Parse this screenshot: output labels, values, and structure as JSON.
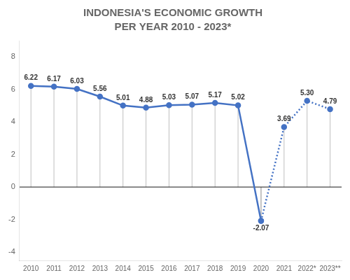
{
  "chart_data": {
    "type": "line",
    "title": "INDONESIA'S ECONOMIC GROWTH",
    "subtitle": "PER YEAR 2010 - 2023*",
    "categories": [
      "2010",
      "2011",
      "2012",
      "2013",
      "2014",
      "2015",
      "2016",
      "2017",
      "2018",
      "2019",
      "2020",
      "2021",
      "2022*",
      "2023**"
    ],
    "color": "#4472c4",
    "series": [
      {
        "line_style": "solid",
        "values": [
          6.22,
          6.17,
          6.03,
          5.56,
          5.01,
          4.88,
          5.03,
          5.07,
          5.17,
          5.02,
          -2.07,
          null,
          null,
          null
        ],
        "value_labels": [
          "6.22",
          "6.17",
          "6.03",
          "5.56",
          "5.01",
          "4.88",
          "5.03",
          "5.07",
          "5.17",
          "5.02",
          "-2.07",
          null,
          null,
          null
        ]
      },
      {
        "line_style": "dotted",
        "values": [
          null,
          null,
          null,
          null,
          null,
          null,
          null,
          null,
          null,
          null,
          -2.07,
          3.69,
          5.3,
          4.79
        ],
        "value_labels": [
          null,
          null,
          null,
          null,
          null,
          null,
          null,
          null,
          null,
          null,
          null,
          "3.69",
          "5.30",
          "4.79"
        ]
      }
    ],
    "ylim": [
      -4.5,
      9.0
    ],
    "yticks": [
      -4,
      -2,
      0,
      2,
      4,
      6,
      8
    ],
    "grid": false,
    "data_labels": true
  }
}
